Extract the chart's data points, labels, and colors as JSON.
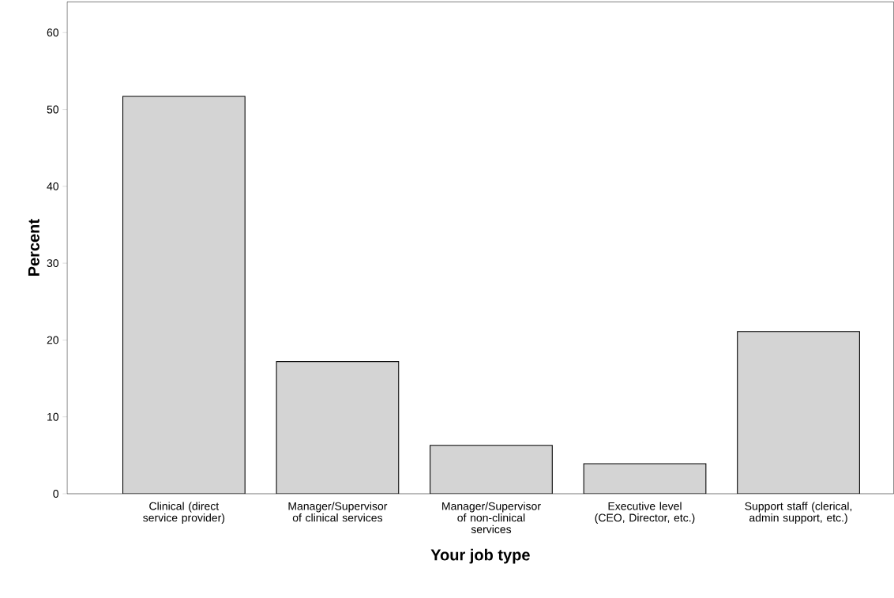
{
  "chart_data": {
    "type": "bar",
    "xlabel": "Your job type",
    "ylabel": "Percent",
    "categories": [
      "Clinical (direct service provider)",
      "Manager/Supervisor of clinical services",
      "Manager/Supervisor of non-clinical services",
      "Executive level (CEO, Director, etc.)",
      "Support staff (clerical, admin support, etc.)"
    ],
    "values": [
      51.7,
      17.2,
      6.3,
      3.9,
      21.1
    ],
    "color": "#d4d4d4",
    "ylim": [
      0,
      64
    ],
    "yticks": [
      0,
      10,
      20,
      30,
      40,
      50,
      60
    ]
  }
}
